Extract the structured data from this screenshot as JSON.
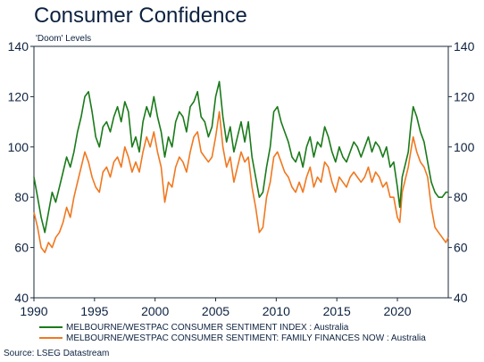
{
  "chart_data": {
    "type": "line",
    "title": "Consumer Confidence",
    "subtitle": "'Doom' Levels",
    "source": "Source: LSEG Datastream",
    "xlim": [
      1990,
      2024.2
    ],
    "ylim": [
      40,
      140
    ],
    "x_ticks": [
      "1990",
      "1995",
      "2000",
      "2005",
      "2010",
      "2015",
      "2020"
    ],
    "y_ticks": [
      "40",
      "60",
      "80",
      "100",
      "120",
      "140"
    ],
    "grid": false,
    "legend_position": "bottom",
    "series": [
      {
        "name": "MELBOURNE/WESTPAC CONSUMER SENTIMENT INDEX : Australia",
        "color": "#1a7a1a",
        "x": [
          1990.0,
          1990.3,
          1990.6,
          1990.9,
          1991.2,
          1991.5,
          1991.8,
          1992.1,
          1992.4,
          1992.7,
          1993.0,
          1993.3,
          1993.6,
          1993.9,
          1994.2,
          1994.5,
          1994.8,
          1995.1,
          1995.4,
          1995.7,
          1996.0,
          1996.3,
          1996.6,
          1996.9,
          1997.2,
          1997.5,
          1997.8,
          1998.1,
          1998.4,
          1998.7,
          1999.0,
          1999.3,
          1999.6,
          1999.9,
          2000.2,
          2000.5,
          2000.8,
          2001.1,
          2001.4,
          2001.7,
          2002.0,
          2002.3,
          2002.6,
          2002.9,
          2003.2,
          2003.5,
          2003.8,
          2004.1,
          2004.4,
          2004.7,
          2005.0,
          2005.3,
          2005.6,
          2005.9,
          2006.2,
          2006.5,
          2006.8,
          2007.1,
          2007.4,
          2007.7,
          2008.0,
          2008.3,
          2008.6,
          2008.9,
          2009.2,
          2009.5,
          2009.8,
          2010.1,
          2010.4,
          2010.7,
          2011.0,
          2011.3,
          2011.6,
          2011.9,
          2012.2,
          2012.5,
          2012.8,
          2013.1,
          2013.4,
          2013.7,
          2014.0,
          2014.3,
          2014.6,
          2014.9,
          2015.2,
          2015.5,
          2015.8,
          2016.1,
          2016.4,
          2016.7,
          2017.0,
          2017.3,
          2017.6,
          2017.9,
          2018.2,
          2018.5,
          2018.8,
          2019.1,
          2019.4,
          2019.7,
          2020.0,
          2020.2,
          2020.4,
          2020.7,
          2020.9,
          2021.1,
          2021.3,
          2021.6,
          2021.9,
          2022.2,
          2022.5,
          2022.8,
          2023.1,
          2023.4,
          2023.7,
          2024.0,
          2024.2
        ],
        "values": [
          88,
          80,
          72,
          66,
          74,
          82,
          78,
          84,
          90,
          96,
          92,
          98,
          106,
          112,
          120,
          122,
          114,
          104,
          100,
          108,
          110,
          106,
          112,
          116,
          110,
          118,
          114,
          100,
          104,
          98,
          110,
          116,
          112,
          120,
          112,
          106,
          96,
          104,
          100,
          110,
          114,
          112,
          106,
          116,
          118,
          122,
          112,
          110,
          104,
          108,
          120,
          126,
          112,
          102,
          108,
          98,
          104,
          110,
          102,
          110,
          96,
          88,
          80,
          82,
          92,
          100,
          114,
          116,
          110,
          106,
          102,
          96,
          94,
          98,
          92,
          100,
          104,
          96,
          102,
          100,
          108,
          104,
          98,
          94,
          100,
          96,
          94,
          98,
          102,
          100,
          96,
          100,
          104,
          98,
          102,
          100,
          96,
          100,
          92,
          94,
          84,
          76,
          88,
          94,
          98,
          108,
          116,
          112,
          106,
          102,
          94,
          86,
          82,
          80,
          80,
          82,
          82
        ]
      },
      {
        "name": "MELBOURNE/WESTPAC CONSUMER SENTIMENT: FAMILY FINANCES NOW : Australia",
        "color": "#f07820",
        "x": [
          1990.0,
          1990.3,
          1990.6,
          1990.9,
          1991.2,
          1991.5,
          1991.8,
          1992.1,
          1992.4,
          1992.7,
          1993.0,
          1993.3,
          1993.6,
          1993.9,
          1994.2,
          1994.5,
          1994.8,
          1995.1,
          1995.4,
          1995.7,
          1996.0,
          1996.3,
          1996.6,
          1996.9,
          1997.2,
          1997.5,
          1997.8,
          1998.1,
          1998.4,
          1998.7,
          1999.0,
          1999.3,
          1999.6,
          1999.9,
          2000.2,
          2000.5,
          2000.8,
          2001.1,
          2001.4,
          2001.7,
          2002.0,
          2002.3,
          2002.6,
          2002.9,
          2003.2,
          2003.5,
          2003.8,
          2004.1,
          2004.4,
          2004.7,
          2005.0,
          2005.3,
          2005.6,
          2005.9,
          2006.2,
          2006.5,
          2006.8,
          2007.1,
          2007.4,
          2007.7,
          2008.0,
          2008.3,
          2008.6,
          2008.9,
          2009.2,
          2009.5,
          2009.8,
          2010.1,
          2010.4,
          2010.7,
          2011.0,
          2011.3,
          2011.6,
          2011.9,
          2012.2,
          2012.5,
          2012.8,
          2013.1,
          2013.4,
          2013.7,
          2014.0,
          2014.3,
          2014.6,
          2014.9,
          2015.2,
          2015.5,
          2015.8,
          2016.1,
          2016.4,
          2016.7,
          2017.0,
          2017.3,
          2017.6,
          2017.9,
          2018.2,
          2018.5,
          2018.8,
          2019.1,
          2019.4,
          2019.7,
          2020.0,
          2020.2,
          2020.4,
          2020.7,
          2020.9,
          2021.1,
          2021.3,
          2021.6,
          2021.9,
          2022.2,
          2022.5,
          2022.8,
          2023.1,
          2023.4,
          2023.7,
          2024.0,
          2024.2
        ],
        "values": [
          74,
          68,
          60,
          58,
          62,
          60,
          64,
          66,
          70,
          76,
          72,
          80,
          86,
          92,
          98,
          94,
          88,
          84,
          82,
          90,
          92,
          88,
          94,
          96,
          92,
          100,
          96,
          90,
          94,
          90,
          98,
          104,
          100,
          106,
          98,
          92,
          78,
          86,
          84,
          92,
          96,
          94,
          90,
          98,
          104,
          106,
          98,
          96,
          94,
          96,
          104,
          114,
          100,
          92,
          96,
          86,
          92,
          98,
          94,
          96,
          84,
          76,
          66,
          68,
          80,
          86,
          96,
          98,
          94,
          90,
          88,
          84,
          82,
          86,
          82,
          88,
          92,
          84,
          88,
          86,
          94,
          92,
          86,
          82,
          88,
          86,
          84,
          88,
          90,
          88,
          86,
          88,
          92,
          86,
          90,
          88,
          84,
          86,
          80,
          80,
          72,
          70,
          82,
          88,
          92,
          98,
          104,
          98,
          94,
          92,
          88,
          76,
          68,
          66,
          64,
          62,
          64
        ]
      }
    ]
  }
}
